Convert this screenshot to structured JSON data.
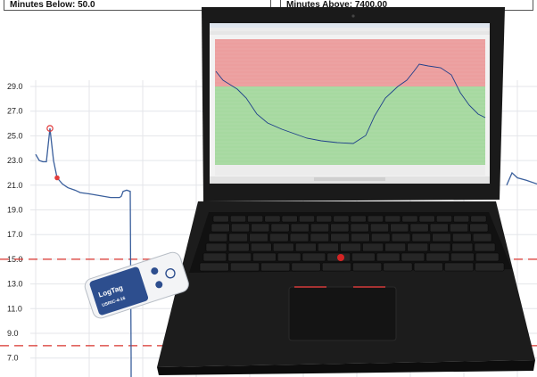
{
  "header": {
    "left_label": "Minutes Below: 50.0",
    "right_label": "Minutes Above: 7400.00"
  },
  "chart_data": {
    "type": "line",
    "title": "",
    "xlabel": "",
    "ylabel": "",
    "y_ticks": [
      "29.0",
      "27.0",
      "25.0",
      "23.0",
      "21.0",
      "19.0",
      "17.0",
      "15.0",
      "13.0",
      "11.0",
      "9.0",
      "7.0"
    ],
    "ylim": [
      6.0,
      30.0
    ],
    "limit_lines": [
      15.0,
      8.0
    ],
    "series": [
      {
        "values": [
          23.5,
          23.0,
          22.9,
          22.9,
          25.6,
          23.0,
          21.6,
          21.1,
          20.8,
          20.6,
          20.4,
          20.3,
          20.2,
          20.1,
          20.0,
          20.0,
          20.0,
          20.1,
          20.5,
          20.6,
          20.5,
          7.0
        ]
      }
    ],
    "markers": [
      {
        "label": "max",
        "x_index": 4,
        "y": 25.6,
        "color": "#e23c3c"
      },
      {
        "label": "point",
        "x_index": 6,
        "y": 21.6,
        "color": "#e23c3c"
      }
    ],
    "grid": true
  },
  "logger": {
    "brand": "LogTag",
    "model": "USRIC-4-16"
  },
  "colors": {
    "line": "#3a5f9c",
    "limit_line": "#d9332d",
    "screen_red": "#e8a0a0",
    "screen_green": "#9fd69f",
    "laptop_body": "#1b1b1b"
  }
}
